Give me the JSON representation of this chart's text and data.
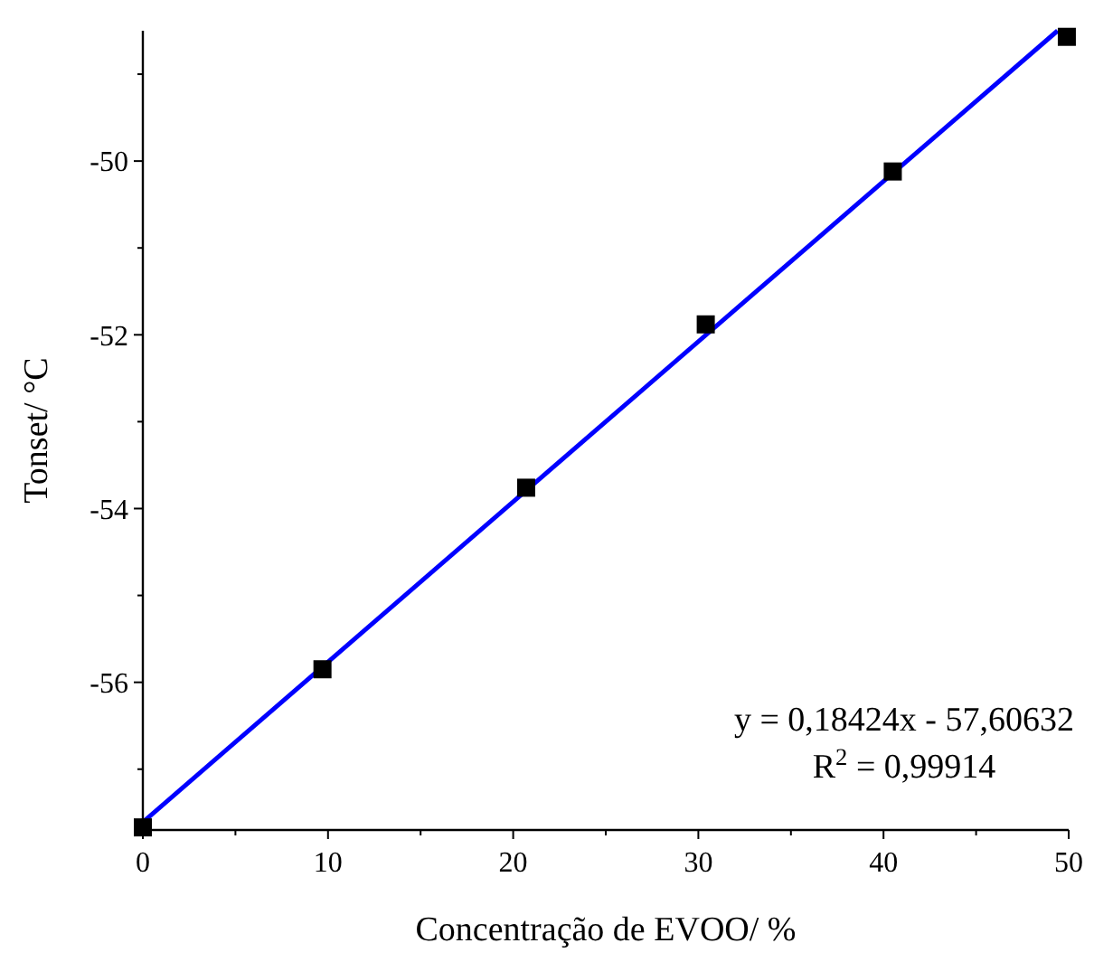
{
  "chart_data": {
    "type": "scatter",
    "xlabel": "Concentração de EVOO/ %",
    "ylabel": "Tonset/ °C",
    "xlim": [
      0,
      50
    ],
    "ylim": [
      -57.7,
      -48.5
    ],
    "xticks": [
      0,
      {
        "value": 5,
        "label": null
      },
      10,
      {
        "value": 15,
        "label": null
      },
      20,
      {
        "value": 25,
        "label": null
      },
      30,
      {
        "value": 35,
        "label": null
      },
      40,
      {
        "value": 45,
        "label": null
      },
      50
    ],
    "yticks": [
      {
        "value": -57,
        "label": null
      },
      -56,
      {
        "value": -55,
        "label": null
      },
      -54,
      {
        "value": -53,
        "label": null
      },
      -52,
      {
        "value": -51,
        "label": null
      },
      -50,
      {
        "value": -49,
        "label": null
      }
    ],
    "series": [
      {
        "marker": "square",
        "color": "#000000",
        "x": [
          0,
          9.7,
          20.7,
          30.4,
          40.5,
          49.9
        ],
        "values": [
          -57.67,
          -55.85,
          -53.76,
          -51.88,
          -50.12,
          -48.57
        ]
      },
      {
        "type": "line",
        "color": "#0000ff",
        "x": [
          0,
          49.4
        ],
        "values": [
          -57.61,
          -48.5
        ]
      }
    ],
    "annotations": [
      "y = 0,18424x - 57,60632",
      "R$^{2}$ = 0,99914"
    ]
  }
}
